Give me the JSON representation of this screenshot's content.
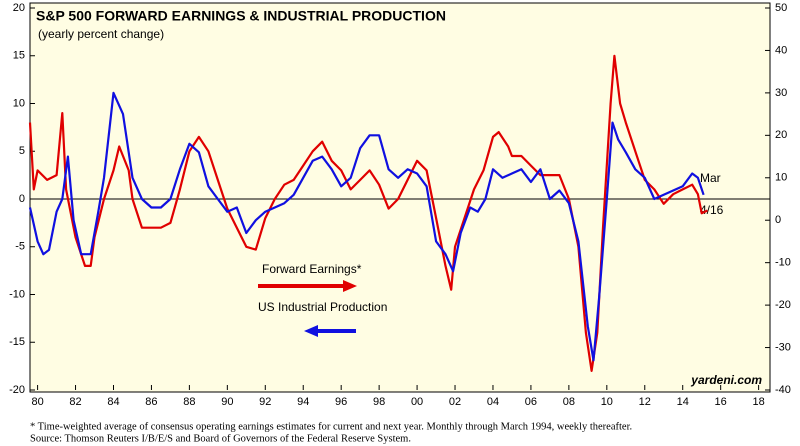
{
  "chart_data": {
    "type": "line",
    "title": "S&P 500 FORWARD EARNINGS & INDUSTRIAL PRODUCTION",
    "subtitle": "(yearly percent change)",
    "xlim": [
      1979.6,
      2018.6
    ],
    "xticks": [
      {
        "value": 1980,
        "label": "80"
      },
      {
        "value": 1982,
        "label": "82"
      },
      {
        "value": 1984,
        "label": "84"
      },
      {
        "value": 1986,
        "label": "86"
      },
      {
        "value": 1988,
        "label": "88"
      },
      {
        "value": 1990,
        "label": "90"
      },
      {
        "value": 1992,
        "label": "92"
      },
      {
        "value": 1994,
        "label": "94"
      },
      {
        "value": 1996,
        "label": "96"
      },
      {
        "value": 1998,
        "label": "98"
      },
      {
        "value": 2000,
        "label": "00"
      },
      {
        "value": 2002,
        "label": "02"
      },
      {
        "value": 2004,
        "label": "04"
      },
      {
        "value": 2006,
        "label": "06"
      },
      {
        "value": 2008,
        "label": "08"
      },
      {
        "value": 2010,
        "label": "10"
      },
      {
        "value": 2012,
        "label": "12"
      },
      {
        "value": 2014,
        "label": "14"
      },
      {
        "value": 2016,
        "label": "16"
      },
      {
        "value": 2018,
        "label": "18"
      }
    ],
    "ylim": [
      -20,
      20
    ],
    "yticks": [
      -20,
      -15,
      -10,
      -5,
      0,
      5,
      10,
      15,
      20
    ],
    "y2lim": [
      -40,
      50
    ],
    "y2ticks": [
      -40,
      -30,
      -20,
      -10,
      0,
      10,
      20,
      30,
      40,
      50
    ],
    "series": [
      {
        "name": "Forward Earnings*",
        "color": "#e00000",
        "x": [
          1979.6,
          1979.8,
          1980,
          1980.5,
          1981,
          1981.3,
          1981.5,
          1982,
          1982.5,
          1982.8,
          1983,
          1983.5,
          1984,
          1984.3,
          1984.8,
          1985,
          1985.5,
          1986,
          1986.5,
          1987,
          1987.5,
          1988,
          1988.5,
          1989,
          1989.5,
          1990,
          1990.5,
          1991,
          1991.5,
          1992,
          1992.5,
          1993,
          1993.5,
          1994,
          1994.5,
          1995,
          1995.5,
          1996,
          1996.5,
          1997,
          1997.5,
          1998,
          1998.5,
          1999,
          1999.5,
          2000,
          2000.5,
          2001,
          2001.5,
          2001.8,
          2002,
          2002.5,
          2003,
          2003.5,
          2004,
          2004.3,
          2004.8,
          2005,
          2005.5,
          2006,
          2006.5,
          2007,
          2007.5,
          2008,
          2008.5,
          2008.9,
          2009.2,
          2009.5,
          2009.8,
          2010.2,
          2010.4,
          2010.7,
          2011,
          2011.5,
          2012,
          2012.5,
          2013,
          2013.5,
          2014,
          2014.5,
          2014.8,
          2015,
          2015.3
        ],
        "values": [
          8,
          1,
          3,
          2,
          2.5,
          9,
          1,
          -4,
          -7,
          -7,
          -4,
          0,
          3,
          5.5,
          3,
          0,
          -3,
          -3,
          -3,
          -2.5,
          1,
          5,
          6.5,
          5,
          2,
          -1,
          -3,
          -5,
          -5.3,
          -2,
          0,
          1.5,
          2,
          3.5,
          5,
          6,
          4,
          3,
          1,
          2,
          3,
          1.5,
          -1,
          0,
          2,
          4,
          3,
          -2,
          -7,
          -9.5,
          -5,
          -2,
          1,
          3,
          6.5,
          7,
          5.5,
          4.5,
          4.5,
          3.5,
          2.5,
          2.5,
          2.5,
          0,
          -5,
          -14,
          -18,
          -14,
          -3,
          10,
          15,
          10,
          8,
          5,
          2,
          1,
          -0.5,
          0.5,
          1,
          1.5,
          0.5,
          -1.5,
          -1.2
        ]
      },
      {
        "name": "US Industrial Production",
        "color": "#1010e0",
        "axis": "y2",
        "x": [
          1979.6,
          1980,
          1980.3,
          1980.6,
          1981,
          1981.3,
          1981.6,
          1981.9,
          1982.3,
          1982.8,
          1983.2,
          1983.5,
          1984,
          1984.5,
          1985,
          1985.5,
          1986,
          1986.5,
          1987,
          1987.5,
          1988,
          1988.5,
          1989,
          1989.5,
          1990,
          1990.5,
          1991,
          1991.5,
          1992,
          1992.5,
          1993,
          1993.5,
          1994,
          1994.5,
          1995,
          1995.5,
          1996,
          1996.5,
          1997,
          1997.5,
          1998,
          1998.5,
          1999,
          1999.5,
          2000,
          2000.5,
          2001,
          2001.5,
          2001.9,
          2002.3,
          2002.8,
          2003.2,
          2003.6,
          2004,
          2004.5,
          2005,
          2005.5,
          2006,
          2006.5,
          2007,
          2007.5,
          2008,
          2008.5,
          2009,
          2009.3,
          2009.6,
          2010,
          2010.3,
          2010.6,
          2011,
          2011.5,
          2012,
          2012.5,
          2013,
          2013.5,
          2014,
          2014.5,
          2014.8,
          2015.1
        ],
        "values": [
          3,
          -5,
          -8,
          -7,
          2,
          5,
          15,
          0,
          -8,
          -8,
          2,
          10,
          30,
          25,
          10,
          5,
          3,
          3,
          5,
          12,
          18,
          16,
          8,
          5,
          2,
          3,
          -3,
          0,
          2,
          3,
          4,
          6,
          10,
          14,
          15,
          12,
          8,
          10,
          17,
          20,
          20,
          12,
          10,
          12,
          11,
          8,
          -5,
          -8,
          -12,
          -3,
          3,
          2,
          5,
          12,
          10,
          11,
          12,
          9,
          12,
          5,
          7,
          4,
          -5,
          -25,
          -33,
          -18,
          5,
          23,
          19,
          16,
          12,
          10,
          5,
          6,
          7,
          8,
          11,
          10,
          6
        ]
      }
    ],
    "annotations": [
      "Mar",
      "4/16",
      "yardeni.com"
    ],
    "notes": [
      "*  Time-weighted average of consensus operating earnings estimates for current and next year. Monthly through March 1994, weekly thereafter.",
      "Source: Thomson Reuters I/B/E/S and Board of Governors of the Federal Reserve System."
    ]
  }
}
